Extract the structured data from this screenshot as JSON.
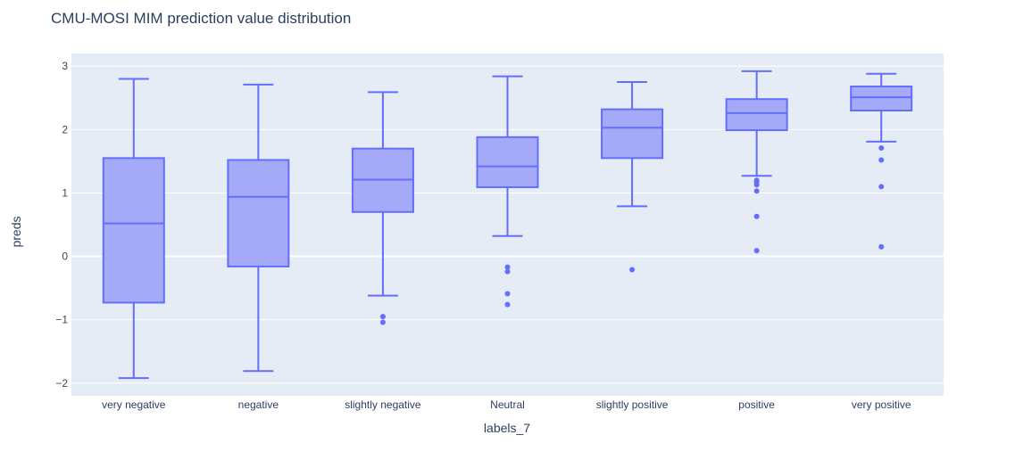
{
  "chart_data": {
    "type": "box",
    "title": "CMU-MOSI MIM prediction value distribution",
    "xlabel": "labels_7",
    "ylabel": "preds",
    "ylim": [
      -2.2,
      3.2
    ],
    "yticks": [
      -2,
      -1,
      0,
      1,
      2,
      3
    ],
    "grid": true,
    "legend": "none",
    "categories": [
      "very negative",
      "negative",
      "slightly negative",
      "Neutral",
      "slightly positive",
      "positive",
      "very positive"
    ],
    "boxes": [
      {
        "category": "very negative",
        "lowerfence": -1.92,
        "q1": -0.73,
        "median": 0.52,
        "q3": 1.55,
        "upperfence": 2.8,
        "outliers": []
      },
      {
        "category": "negative",
        "lowerfence": -1.81,
        "q1": -0.16,
        "median": 0.94,
        "q3": 1.52,
        "upperfence": 2.71,
        "outliers": []
      },
      {
        "category": "slightly negative",
        "lowerfence": -0.62,
        "q1": 0.7,
        "median": 1.21,
        "q3": 1.7,
        "upperfence": 2.59,
        "outliers": [
          -0.95,
          -1.04
        ]
      },
      {
        "category": "Neutral",
        "lowerfence": 0.32,
        "q1": 1.09,
        "median": 1.42,
        "q3": 1.88,
        "upperfence": 2.84,
        "outliers": [
          -0.17,
          -0.24,
          -0.59,
          -0.76
        ]
      },
      {
        "category": "slightly positive",
        "lowerfence": 0.79,
        "q1": 1.55,
        "median": 2.03,
        "q3": 2.32,
        "upperfence": 2.75,
        "outliers": [
          -0.21
        ]
      },
      {
        "category": "positive",
        "lowerfence": 1.27,
        "q1": 1.99,
        "median": 2.26,
        "q3": 2.48,
        "upperfence": 2.92,
        "outliers": [
          1.2,
          1.17,
          1.13,
          1.03,
          0.63,
          0.09
        ]
      },
      {
        "category": "very positive",
        "lowerfence": 1.81,
        "q1": 2.3,
        "median": 2.51,
        "q3": 2.68,
        "upperfence": 2.88,
        "outliers": [
          1.71,
          1.52,
          1.1,
          0.15
        ]
      }
    ],
    "colors": {
      "line": "#636efa",
      "fill": "#a4aaf8",
      "plot_bg": "#e5ecf6",
      "grid": "#ffffff",
      "text": "#2a3f5f",
      "tick": "#444444"
    }
  }
}
